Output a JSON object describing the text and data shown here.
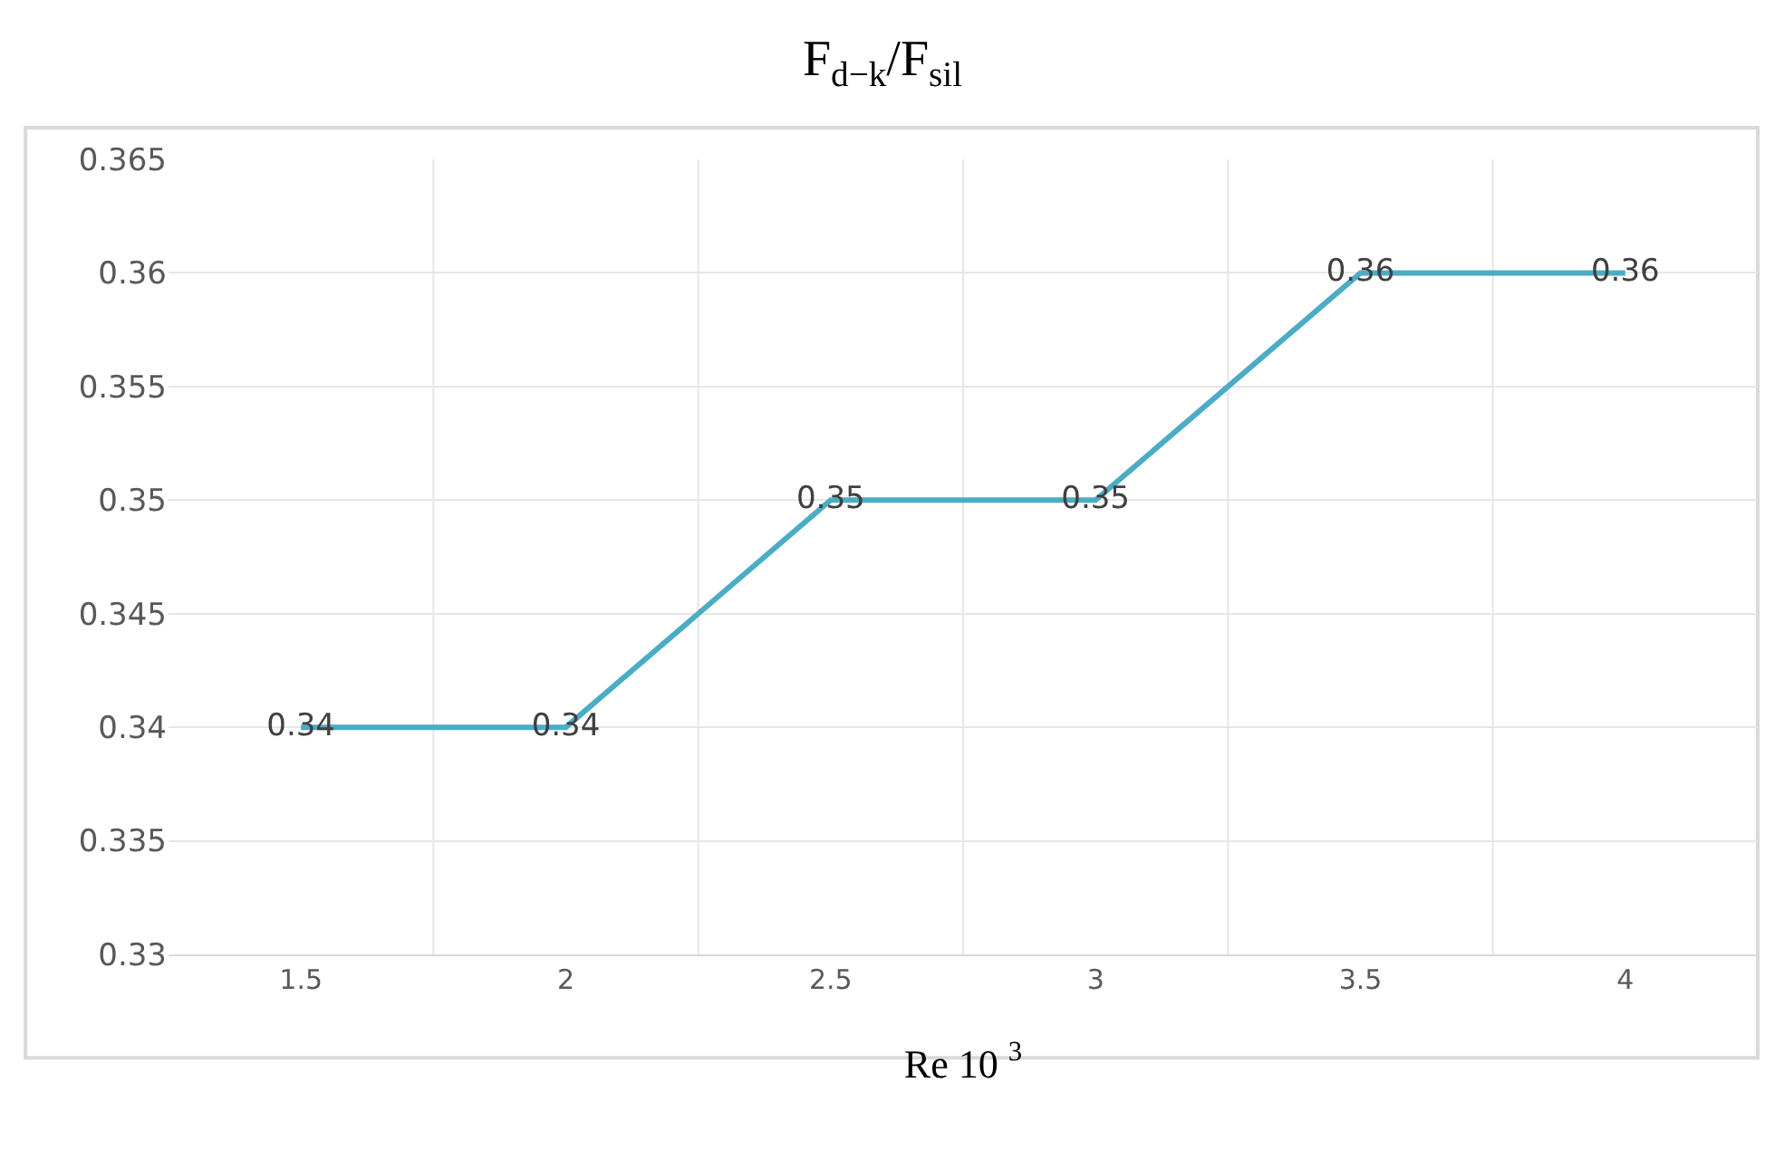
{
  "chart_data": {
    "type": "line",
    "title": "F$_{d−k}$/F$_{sil}$",
    "xlabel": "Re 10 $^{3}$",
    "categories": [
      "1.5",
      "2",
      "2.5",
      "3",
      "3.5",
      "4"
    ],
    "series": [
      {
        "color": "#4bacc6",
        "values": [
          0.34,
          0.34,
          0.35,
          0.35,
          0.36,
          0.36
        ]
      }
    ],
    "ylim": [
      0.33,
      0.365
    ],
    "yticks": [
      0.33,
      0.335,
      0.34,
      0.345,
      0.35,
      0.355,
      0.36,
      0.365
    ],
    "data_labels": true,
    "grid": true,
    "marker": "none",
    "line_style": "solid"
  }
}
